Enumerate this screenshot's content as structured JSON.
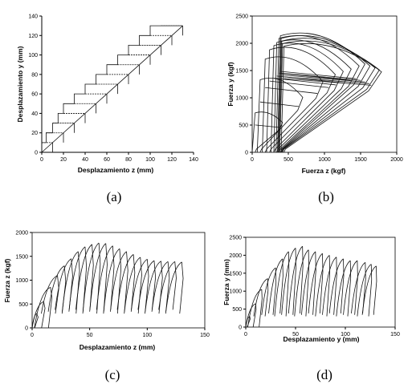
{
  "chart_data": [
    {
      "id": "a",
      "type": "line",
      "caption": "(a)",
      "xlabel": "Desplazamiento  z   (mm)",
      "ylabel": "Desplazamiento  y   (mm)",
      "xlim": [
        0,
        140
      ],
      "ylim": [
        0,
        140
      ],
      "xticks": [
        0,
        20,
        40,
        60,
        80,
        100,
        120,
        140
      ],
      "yticks": [
        0,
        20,
        40,
        60,
        80,
        100,
        120,
        140
      ],
      "series": [
        {
          "x": [
            0,
            0,
            4,
            4,
            10,
            10,
            15,
            15,
            20,
            20,
            30,
            30,
            40,
            40,
            50,
            50,
            60,
            60,
            70,
            70,
            80,
            80,
            90,
            90,
            100,
            100,
            110,
            110,
            120,
            120,
            130
          ],
          "y": [
            0,
            10,
            10,
            20,
            20,
            30,
            30,
            40,
            40,
            50,
            50,
            60,
            60,
            70,
            70,
            80,
            80,
            90,
            90,
            100,
            100,
            110,
            110,
            120,
            120,
            130,
            130,
            130,
            130,
            130,
            130
          ]
        }
      ]
    },
    {
      "id": "b",
      "type": "line",
      "caption": "(b)",
      "xlabel": "Fuerza  z   (kgf)",
      "ylabel": "Fuerza  y   (kgf)",
      "xlim": [
        0,
        2000
      ],
      "ylim": [
        0,
        2500
      ],
      "xticks": [
        0,
        500,
        1000,
        1500,
        2000
      ],
      "yticks": [
        0,
        500,
        1000,
        1500,
        2000,
        2500
      ],
      "loops": [
        {
          "zs": 0,
          "zp": 420,
          "yp": 760
        },
        {
          "zs": 70,
          "zp": 700,
          "yp": 1400
        },
        {
          "zs": 140,
          "zp": 980,
          "yp": 1800
        },
        {
          "zs": 200,
          "zp": 1150,
          "yp": 1980
        },
        {
          "zs": 260,
          "zp": 1260,
          "yp": 2060
        },
        {
          "zs": 300,
          "zp": 1370,
          "yp": 2120
        },
        {
          "zs": 330,
          "zp": 1480,
          "yp": 2200
        },
        {
          "zs": 350,
          "zp": 1560,
          "yp": 2250
        },
        {
          "zs": 360,
          "zp": 1630,
          "yp": 2200
        },
        {
          "zs": 370,
          "zp": 1700,
          "yp": 2150
        },
        {
          "zs": 380,
          "zp": 1760,
          "yp": 2100
        },
        {
          "zs": 400,
          "zp": 1790,
          "yp": 2050
        }
      ]
    },
    {
      "id": "c",
      "type": "line",
      "caption": "(c)",
      "xlabel": "Desplazamiento  z   (mm)",
      "ylabel": "Fuerza  z  (kgf)",
      "xlim": [
        0,
        150
      ],
      "ylim": [
        0,
        2000
      ],
      "xticks": [
        0,
        50,
        100,
        150
      ],
      "yticks": [
        0,
        500,
        1000,
        1500,
        2000
      ],
      "peaks": [
        [
          4,
          300
        ],
        [
          10,
          550
        ],
        [
          16,
          850
        ],
        [
          22,
          1100
        ],
        [
          28,
          1300
        ],
        [
          34,
          1450
        ],
        [
          40,
          1600
        ],
        [
          46,
          1700
        ],
        [
          52,
          1750
        ],
        [
          58,
          1780
        ],
        [
          64,
          1770
        ],
        [
          70,
          1720
        ],
        [
          76,
          1660
        ],
        [
          82,
          1600
        ],
        [
          88,
          1540
        ],
        [
          94,
          1480
        ],
        [
          100,
          1440
        ],
        [
          106,
          1410
        ],
        [
          112,
          1400
        ],
        [
          118,
          1390
        ],
        [
          124,
          1390
        ],
        [
          130,
          1380
        ]
      ]
    },
    {
      "id": "d",
      "type": "line",
      "caption": "(d)",
      "xlabel": "Desplazamiento  y   (mm)",
      "ylabel": "Fuerza  y  (mm)",
      "xlim": [
        0,
        150
      ],
      "ylim": [
        0,
        2500
      ],
      "xticks": [
        0,
        50,
        100,
        150
      ],
      "yticks": [
        0,
        500,
        1000,
        1500,
        2000,
        2500
      ],
      "peaks": [
        [
          4,
          300
        ],
        [
          10,
          650
        ],
        [
          16,
          1050
        ],
        [
          22,
          1350
        ],
        [
          30,
          1650
        ],
        [
          37,
          1900
        ],
        [
          43,
          2100
        ],
        [
          50,
          2200
        ],
        [
          57,
          2250
        ],
        [
          63,
          2150
        ],
        [
          70,
          2100
        ],
        [
          77,
          2050
        ],
        [
          84,
          2000
        ],
        [
          91,
          1950
        ],
        [
          98,
          1900
        ],
        [
          105,
          1850
        ],
        [
          112,
          1850
        ],
        [
          120,
          1800
        ],
        [
          126,
          1750
        ],
        [
          131,
          1700
        ]
      ]
    }
  ]
}
